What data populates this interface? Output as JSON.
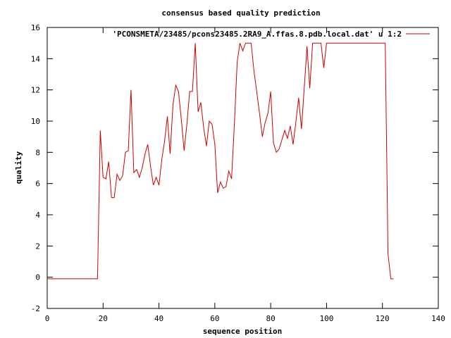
{
  "chart_data": {
    "type": "line",
    "title": "consensus based quality prediction",
    "xlabel": "sequence position",
    "ylabel": "quality",
    "xlim": [
      0,
      140
    ],
    "ylim": [
      -2,
      16
    ],
    "xticks": [
      0,
      20,
      40,
      60,
      80,
      100,
      120,
      140
    ],
    "yticks": [
      -2,
      0,
      2,
      4,
      6,
      8,
      10,
      12,
      14,
      16
    ],
    "grid": false,
    "legend_position": "top-right",
    "series": [
      {
        "name": "'PCONSMETA/23485/pcons23485.2RA9_A.ffas.8.pdb.local.dat' u 1:2",
        "color": "#cc0000",
        "x": [
          0,
          1,
          2,
          3,
          4,
          5,
          6,
          7,
          8,
          9,
          10,
          11,
          12,
          13,
          14,
          15,
          16,
          17,
          18,
          19,
          20,
          21,
          22,
          23,
          24,
          25,
          26,
          27,
          28,
          29,
          30,
          31,
          32,
          33,
          34,
          35,
          36,
          37,
          38,
          39,
          40,
          41,
          42,
          43,
          44,
          45,
          46,
          47,
          48,
          49,
          50,
          51,
          52,
          53,
          54,
          55,
          56,
          57,
          58,
          59,
          60,
          61,
          62,
          63,
          64,
          65,
          66,
          67,
          68,
          69,
          70,
          71,
          72,
          73,
          74,
          75,
          76,
          77,
          78,
          79,
          80,
          81,
          82,
          83,
          84,
          85,
          86,
          87,
          88,
          89,
          90,
          91,
          92,
          93,
          94,
          95,
          96,
          97,
          98,
          99,
          100,
          101,
          102,
          103,
          104,
          105,
          106,
          107,
          108,
          109,
          110,
          111,
          112,
          113,
          114,
          115,
          116,
          117,
          118,
          119,
          120,
          121,
          122,
          123,
          124
        ],
        "values": [
          -0.1,
          -0.1,
          -0.1,
          -0.1,
          -0.1,
          -0.1,
          -0.1,
          -0.1,
          -0.1,
          -0.1,
          -0.1,
          -0.1,
          -0.1,
          -0.1,
          -0.1,
          -0.1,
          -0.1,
          -0.1,
          -0.1,
          9.4,
          6.4,
          6.3,
          7.4,
          5.1,
          5.1,
          6.6,
          6.2,
          6.5,
          8.0,
          8.1,
          12.0,
          6.7,
          6.9,
          6.4,
          7.0,
          7.9,
          8.5,
          7.1,
          5.9,
          6.4,
          5.9,
          7.5,
          8.7,
          10.3,
          7.9,
          11.0,
          12.3,
          11.9,
          10.1,
          8.1,
          9.8,
          11.9,
          11.9,
          15.0,
          10.6,
          11.2,
          9.6,
          8.4,
          10.0,
          9.8,
          8.5,
          5.4,
          6.1,
          5.7,
          5.8,
          6.8,
          6.3,
          9.8,
          13.8,
          15.0,
          14.5,
          15.0,
          15.0,
          15.0,
          13.2,
          11.9,
          10.5,
          9.0,
          9.9,
          10.5,
          11.9,
          8.6,
          8.0,
          8.2,
          8.8,
          9.4,
          8.9,
          9.7,
          8.5,
          9.9,
          11.5,
          9.5,
          12.1,
          14.8,
          12.1,
          15.0,
          15.0,
          15.0,
          15.0,
          13.4,
          15.0,
          15.0,
          15.0,
          15.0,
          15.0,
          15.0,
          15.0,
          15.0,
          15.0,
          15.0,
          15.0,
          15.0,
          15.0,
          15.0,
          15.0,
          15.0,
          15.0,
          15.0,
          15.0,
          15.0,
          15.0,
          15.0,
          1.5,
          -0.1,
          -0.1
        ]
      }
    ]
  }
}
